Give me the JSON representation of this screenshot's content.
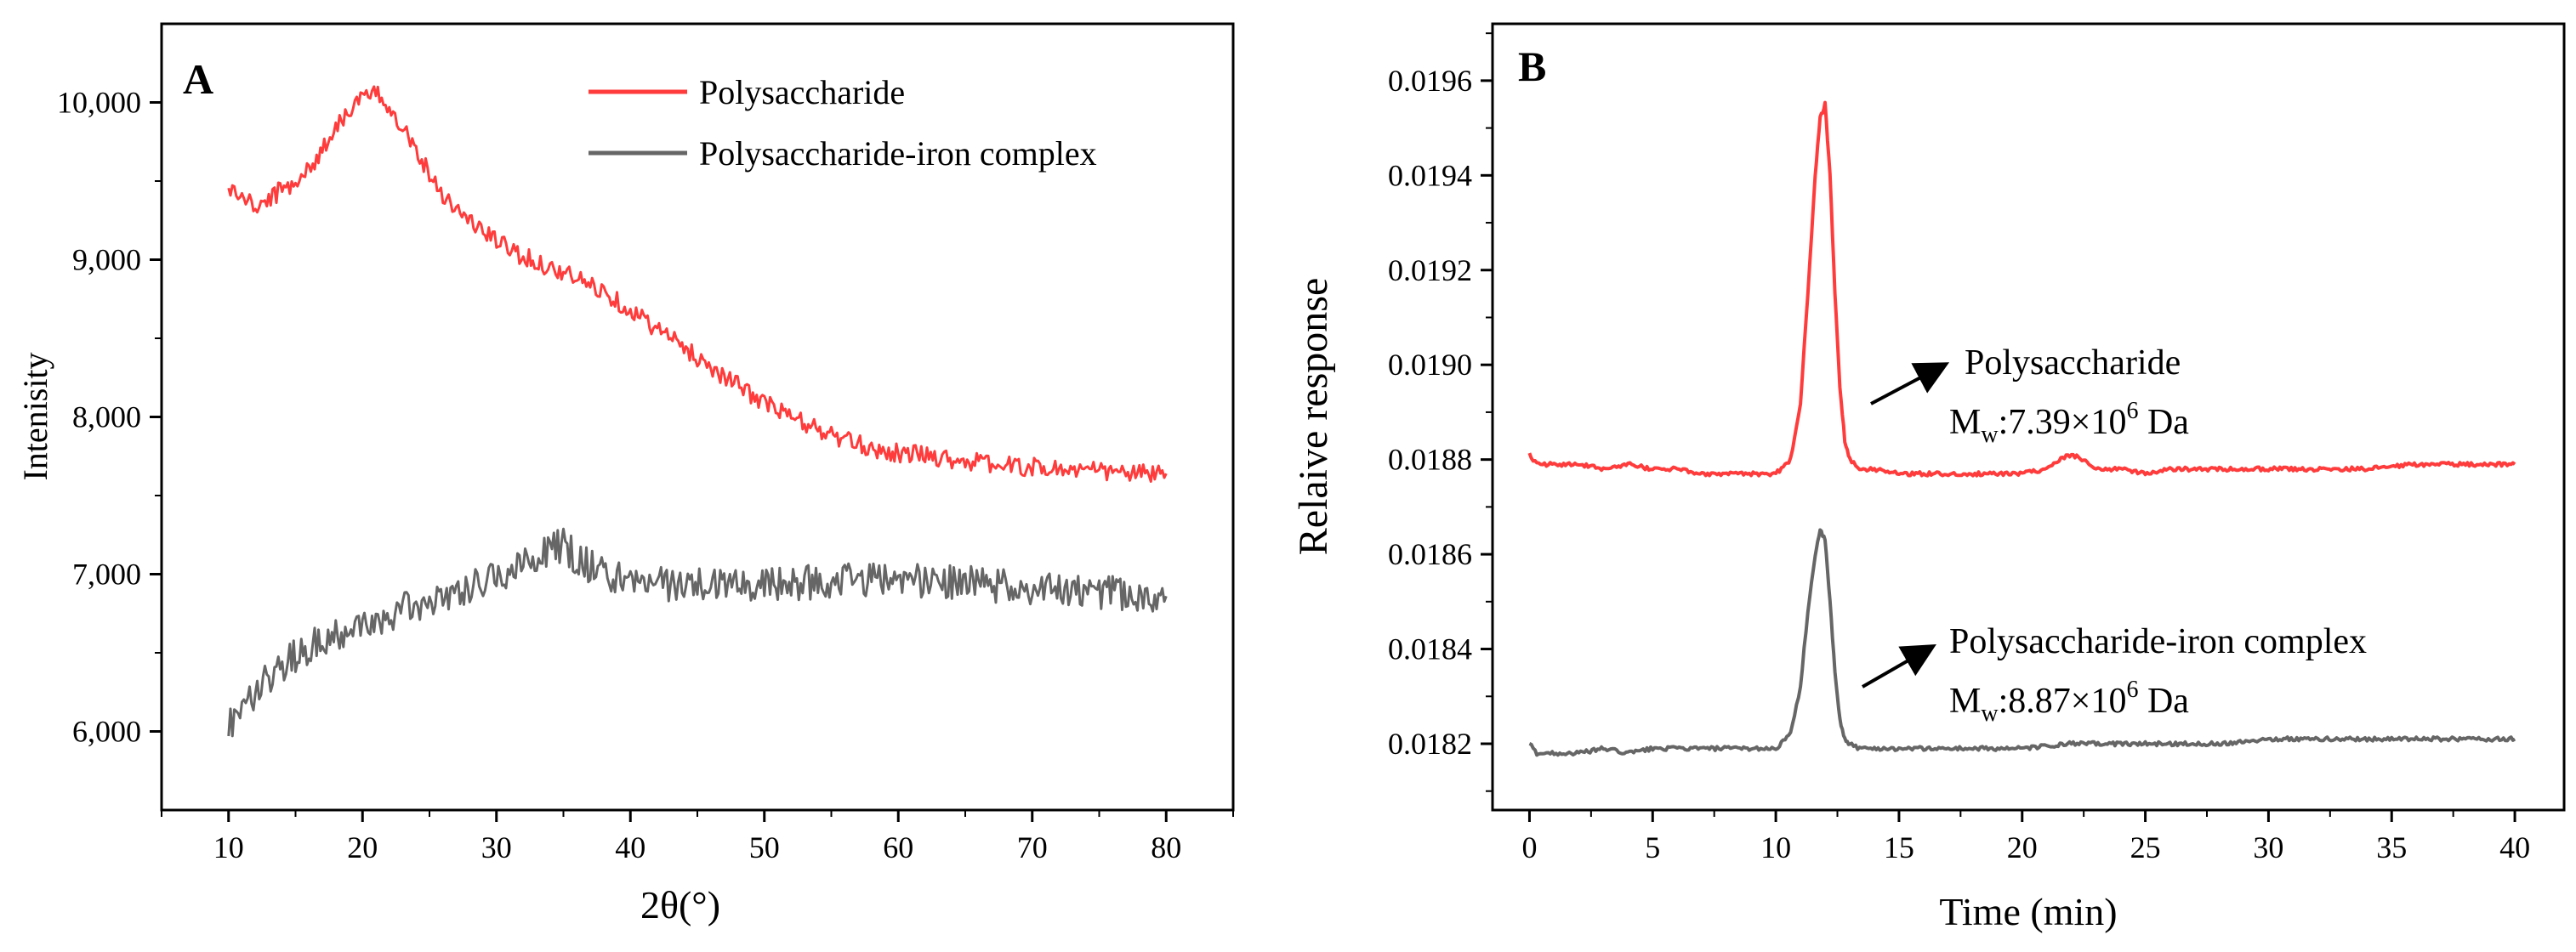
{
  "chart_data": [
    {
      "type": "line",
      "panel_label": "A",
      "xlabel": "2θ(°)",
      "ylabel": "Intenisity",
      "xlim": [
        5,
        85
      ],
      "ylim": [
        5500,
        10500
      ],
      "x_ticks": [
        10,
        20,
        30,
        40,
        50,
        60,
        70,
        80
      ],
      "y_ticks": [
        6000,
        7000,
        8000,
        9000,
        10000
      ],
      "y_tick_labels": [
        "6,000",
        "7,000",
        "8,000",
        "9,000",
        "10,000"
      ],
      "legend_position": "top-right",
      "series": [
        {
          "name": "Polysaccharide",
          "color": "#ff3b3b",
          "x": [
            10,
            11,
            12,
            13,
            14,
            15,
            16,
            17,
            18,
            19,
            20,
            21,
            22,
            23,
            24,
            25,
            26,
            27,
            28,
            29,
            30,
            32,
            34,
            36,
            38,
            40,
            42,
            44,
            46,
            48,
            50,
            52,
            54,
            56,
            58,
            60,
            62,
            64,
            66,
            68,
            70,
            72,
            74,
            76,
            78,
            80
          ],
          "values": [
            9450,
            9400,
            9330,
            9380,
            9450,
            9500,
            9570,
            9700,
            9850,
            9950,
            10030,
            10050,
            9980,
            9850,
            9700,
            9550,
            9420,
            9320,
            9250,
            9180,
            9120,
            9020,
            8950,
            8880,
            8800,
            8680,
            8560,
            8440,
            8320,
            8200,
            8090,
            8000,
            7920,
            7850,
            7800,
            7770,
            7760,
            7730,
            7710,
            7690,
            7680,
            7670,
            7660,
            7650,
            7640,
            7640
          ]
        },
        {
          "name": "Polysaccharide-iron complex",
          "color": "#666666",
          "x": [
            10,
            11,
            12,
            13,
            14,
            15,
            16,
            17,
            18,
            19,
            20,
            22,
            24,
            26,
            28,
            30,
            32,
            33,
            34,
            35,
            36,
            38,
            40,
            42,
            44,
            46,
            48,
            50,
            52,
            54,
            56,
            58,
            60,
            62,
            64,
            66,
            68,
            70,
            72,
            74,
            76,
            78,
            80
          ],
          "values": [
            6050,
            6150,
            6250,
            6350,
            6420,
            6480,
            6540,
            6580,
            6620,
            6640,
            6670,
            6740,
            6800,
            6870,
            6920,
            6990,
            7070,
            7120,
            7160,
            7180,
            7100,
            7000,
            6960,
            6940,
            6930,
            6930,
            6930,
            6940,
            6940,
            6950,
            6960,
            6960,
            6970,
            6960,
            6950,
            6940,
            6920,
            6910,
            6900,
            6890,
            6880,
            6870,
            6860
          ]
        }
      ]
    },
    {
      "type": "line",
      "panel_label": "B",
      "xlabel": "Time (min)",
      "ylabel": "Relaive response",
      "xlim": [
        -1.5,
        42
      ],
      "ylim": [
        0.01806,
        0.01972
      ],
      "x_ticks": [
        0,
        5,
        10,
        15,
        20,
        25,
        30,
        35,
        40
      ],
      "y_ticks": [
        0.0182,
        0.0184,
        0.0186,
        0.0188,
        0.019,
        0.0192,
        0.0194,
        0.0196
      ],
      "y_tick_labels": [
        "0.0182",
        "0.0184",
        "0.0186",
        "0.0188",
        "0.0190",
        "0.0192",
        "0.0194",
        "0.0196"
      ],
      "series": [
        {
          "name": "Polysaccharide",
          "color": "#ff3b3b",
          "x": [
            0,
            0.3,
            1,
            2,
            3,
            4,
            5,
            6,
            7,
            8,
            9,
            10,
            10.6,
            11,
            11.3,
            11.6,
            11.8,
            12,
            12.2,
            12.4,
            12.6,
            12.8,
            13,
            13.4,
            14,
            15,
            16,
            17,
            18,
            19,
            20,
            21,
            21.5,
            22,
            22.5,
            23,
            24,
            25,
            26,
            27,
            28,
            29,
            30,
            32,
            34,
            36,
            38,
            40
          ],
          "values": [
            0.01881,
            0.01879,
            0.01879,
            0.01879,
            0.01878,
            0.01879,
            0.01878,
            0.01878,
            0.01877,
            0.01877,
            0.01877,
            0.01877,
            0.0188,
            0.01892,
            0.01915,
            0.0194,
            0.01952,
            0.01955,
            0.0194,
            0.01915,
            0.01895,
            0.01884,
            0.0188,
            0.01878,
            0.01878,
            0.01877,
            0.01877,
            0.01877,
            0.01877,
            0.01877,
            0.01877,
            0.01878,
            0.0188,
            0.01881,
            0.0188,
            0.01878,
            0.01878,
            0.01877,
            0.01878,
            0.01878,
            0.01878,
            0.01878,
            0.01878,
            0.01878,
            0.01878,
            0.01879,
            0.01879,
            0.01879
          ]
        },
        {
          "name": "Polysaccharide-iron complex",
          "color": "#666666",
          "x": [
            0,
            0.3,
            1,
            2,
            3,
            4,
            5,
            6,
            7,
            8,
            9,
            10,
            10.6,
            11,
            11.3,
            11.6,
            11.8,
            12,
            12.2,
            12.4,
            12.6,
            12.8,
            13,
            13.4,
            14,
            15,
            16,
            17,
            18,
            19,
            20,
            22,
            24,
            26,
            28,
            30,
            32,
            34,
            36,
            38,
            40
          ],
          "values": [
            0.0182,
            0.01818,
            0.01818,
            0.01818,
            0.01819,
            0.01818,
            0.01819,
            0.01819,
            0.01819,
            0.01819,
            0.01819,
            0.01819,
            0.01822,
            0.01832,
            0.01848,
            0.0186,
            0.01865,
            0.01863,
            0.0185,
            0.01835,
            0.01825,
            0.01821,
            0.0182,
            0.01819,
            0.01819,
            0.01819,
            0.01819,
            0.01819,
            0.01819,
            0.01819,
            0.01819,
            0.0182,
            0.0182,
            0.0182,
            0.0182,
            0.01821,
            0.01821,
            0.01821,
            0.01821,
            0.01821,
            0.01821
          ]
        }
      ],
      "annotations": [
        {
          "name": "Polysaccharide",
          "mw_prefix": "M",
          "mw_sub": "w",
          "mw_value": ":7.39×10",
          "mw_exp": "6",
          "mw_unit": " Da"
        },
        {
          "name": "Polysaccharide-iron complex",
          "mw_prefix": "M",
          "mw_sub": "w",
          "mw_value": ":8.87×10",
          "mw_exp": "6",
          "mw_unit": " Da"
        }
      ]
    }
  ]
}
